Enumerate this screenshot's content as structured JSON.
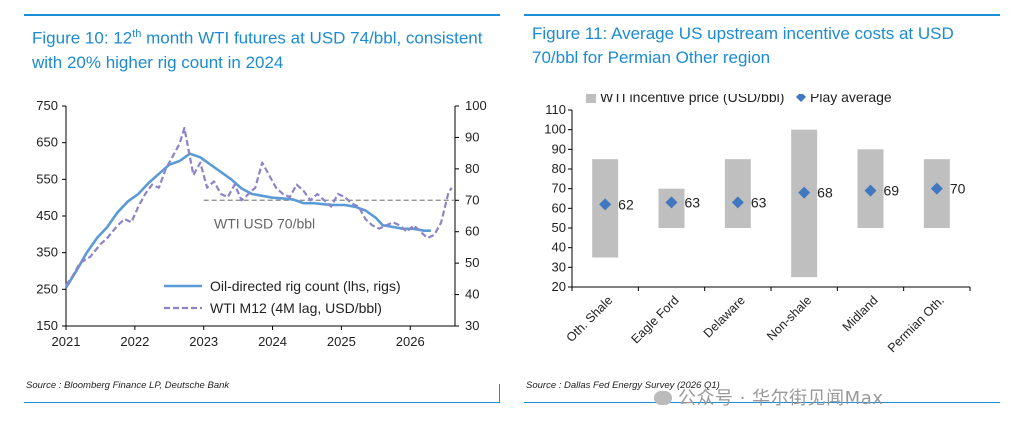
{
  "figure_left": {
    "title_pre": "Figure 10: 12",
    "title_sup": "th",
    "title_post": " month WTI futures at USD 74/bbl, consistent with 20% higher rig count in 2024",
    "source": "Source : Bloomberg Finance LP, Deutsche Bank"
  },
  "figure_right": {
    "title": "Figure 11: Average US upstream incentive costs at USD 70/bbl for Permian Other region",
    "source": "Source : Dallas Fed Energy Survey (2026 Q1)"
  },
  "watermark": "公众号 · 华尔街见闻Max",
  "colors": {
    "accent": "#1c8bd3",
    "rig_line": "#5b9bd5",
    "wti_line": "#8d84c8",
    "bar": "#bfbfbf",
    "diamond": "#3f78c0",
    "ref_line": "#888888"
  },
  "chart_data": [
    {
      "type": "line",
      "x_ticks": [
        "2021",
        "2022",
        "2023",
        "2024",
        "2025",
        "2026"
      ],
      "y_left": {
        "min": 150,
        "max": 750,
        "ticks": [
          150,
          250,
          350,
          450,
          550,
          650,
          750
        ]
      },
      "y_right": {
        "min": 30,
        "max": 100,
        "ticks": [
          30,
          40,
          50,
          60,
          70,
          80,
          90,
          100
        ]
      },
      "reference": {
        "label": "WTI USD 70/bbl",
        "value": 70,
        "axis": "right",
        "x_start": 2023.0
      },
      "series": [
        {
          "name": "Oil-directed rig count (lhs, rigs)",
          "axis": "left",
          "style": "solid",
          "points": [
            [
              2021.0,
              255
            ],
            [
              2021.15,
              300
            ],
            [
              2021.3,
              350
            ],
            [
              2021.45,
              390
            ],
            [
              2021.6,
              420
            ],
            [
              2021.75,
              460
            ],
            [
              2021.9,
              490
            ],
            [
              2022.05,
              510
            ],
            [
              2022.2,
              540
            ],
            [
              2022.35,
              565
            ],
            [
              2022.5,
              590
            ],
            [
              2022.65,
              600
            ],
            [
              2022.8,
              620
            ],
            [
              2022.95,
              610
            ],
            [
              2023.1,
              590
            ],
            [
              2023.25,
              570
            ],
            [
              2023.4,
              550
            ],
            [
              2023.55,
              525
            ],
            [
              2023.7,
              510
            ],
            [
              2023.85,
              505
            ],
            [
              2024.0,
              500
            ],
            [
              2024.15,
              498
            ],
            [
              2024.3,
              495
            ],
            [
              2024.45,
              485
            ],
            [
              2024.6,
              485
            ],
            [
              2024.75,
              482
            ],
            [
              2024.9,
              480
            ],
            [
              2025.05,
              480
            ],
            [
              2025.2,
              475
            ],
            [
              2025.35,
              465
            ],
            [
              2025.5,
              445
            ],
            [
              2025.6,
              425
            ],
            [
              2025.75,
              420
            ],
            [
              2025.9,
              415
            ],
            [
              2026.05,
              415
            ],
            [
              2026.2,
              410
            ],
            [
              2026.3,
              410
            ]
          ]
        },
        {
          "name": "WTI M12 (4M lag, USD/bbl)",
          "axis": "right",
          "style": "dashed",
          "points": [
            [
              2021.0,
              43
            ],
            [
              2021.1,
              46
            ],
            [
              2021.2,
              50
            ],
            [
              2021.35,
              52
            ],
            [
              2021.5,
              56
            ],
            [
              2021.6,
              58
            ],
            [
              2021.75,
              62
            ],
            [
              2021.85,
              64
            ],
            [
              2021.95,
              63
            ],
            [
              2022.05,
              68
            ],
            [
              2022.15,
              72
            ],
            [
              2022.25,
              75
            ],
            [
              2022.35,
              74
            ],
            [
              2022.45,
              80
            ],
            [
              2022.55,
              84
            ],
            [
              2022.65,
              88
            ],
            [
              2022.72,
              93
            ],
            [
              2022.78,
              86
            ],
            [
              2022.85,
              78
            ],
            [
              2022.95,
              82
            ],
            [
              2023.05,
              74
            ],
            [
              2023.15,
              76
            ],
            [
              2023.25,
              72
            ],
            [
              2023.35,
              71
            ],
            [
              2023.45,
              75
            ],
            [
              2023.55,
              70
            ],
            [
              2023.65,
              72
            ],
            [
              2023.75,
              74
            ],
            [
              2023.85,
              82
            ],
            [
              2023.95,
              78
            ],
            [
              2024.05,
              74
            ],
            [
              2024.15,
              72
            ],
            [
              2024.25,
              71
            ],
            [
              2024.35,
              75
            ],
            [
              2024.45,
              73
            ],
            [
              2024.55,
              70
            ],
            [
              2024.65,
              72
            ],
            [
              2024.75,
              70
            ],
            [
              2024.85,
              68
            ],
            [
              2024.95,
              72
            ],
            [
              2025.05,
              71
            ],
            [
              2025.15,
              69
            ],
            [
              2025.25,
              68
            ],
            [
              2025.35,
              64
            ],
            [
              2025.45,
              62
            ],
            [
              2025.55,
              61
            ],
            [
              2025.65,
              62
            ],
            [
              2025.75,
              63
            ],
            [
              2025.85,
              62
            ],
            [
              2025.95,
              60
            ],
            [
              2026.05,
              62
            ],
            [
              2026.15,
              60
            ],
            [
              2026.25,
              58
            ],
            [
              2026.35,
              59
            ],
            [
              2026.45,
              63
            ],
            [
              2026.55,
              72
            ],
            [
              2026.6,
              74
            ]
          ]
        }
      ]
    },
    {
      "type": "floating_bar_with_markers",
      "categories": [
        "Oth. Shale",
        "Eagle Ford",
        "Delaware",
        "Non-shale",
        "Midland",
        "Permian Oth."
      ],
      "y_axis": {
        "min": 20,
        "max": 110,
        "ticks": [
          20,
          30,
          40,
          50,
          60,
          70,
          80,
          90,
          100,
          110
        ]
      },
      "series": [
        {
          "name": "WTI incentive price (USD/bbl)",
          "ranges": [
            [
              35,
              85
            ],
            [
              50,
              70
            ],
            [
              50,
              85
            ],
            [
              25,
              100
            ],
            [
              50,
              90
            ],
            [
              50,
              85
            ]
          ]
        },
        {
          "name": "Play average",
          "values": [
            62,
            63,
            63,
            68,
            69,
            70
          ],
          "labels": [
            "62",
            "63",
            "63",
            "68",
            "69",
            "70"
          ]
        }
      ]
    }
  ]
}
